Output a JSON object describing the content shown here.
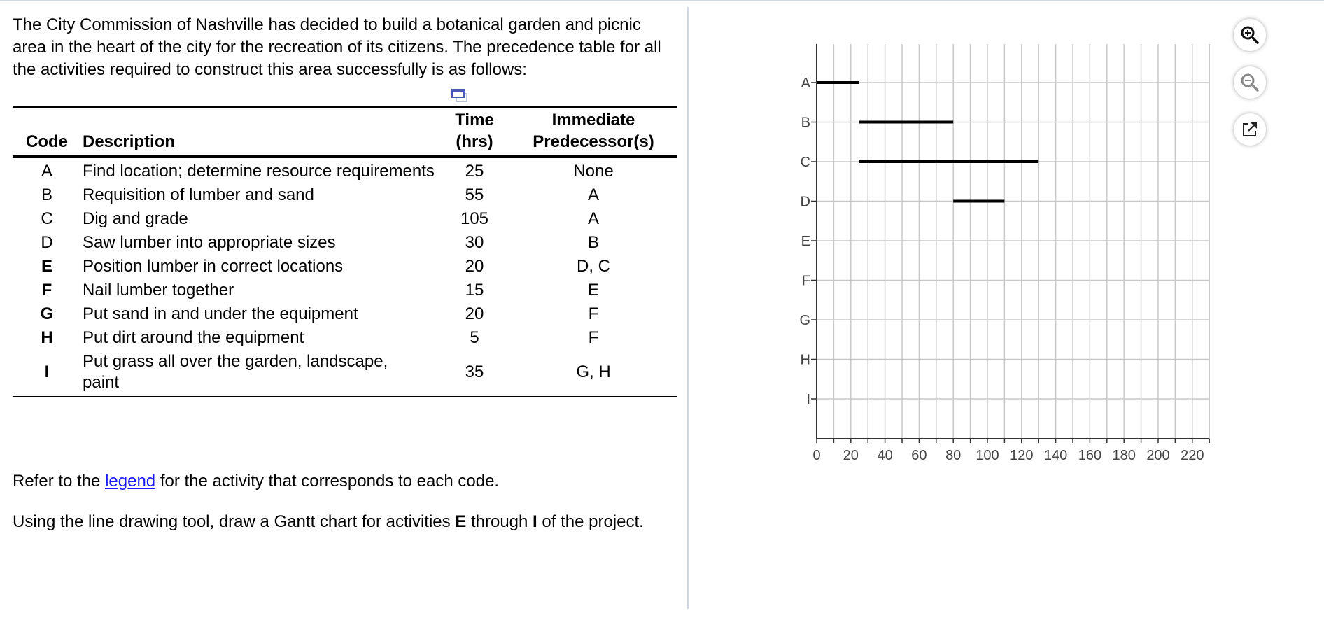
{
  "intro": {
    "text": "The City Commission of Nashville has decided to build a botanical garden and picnic area in the heart of the city for the recreation of its citizens. The precedence table for all the activities required to construct this area successfully is as follows:"
  },
  "copy_icon": "copy-table-icon",
  "table": {
    "headers": {
      "code": "Code",
      "description": "Description",
      "time_line1": "Time",
      "time_line2": "(hrs)",
      "pred_line1": "Immediate",
      "pred_line2": "Predecessor(s)"
    },
    "rows": [
      {
        "code": "A",
        "description": "Find location; determine resource requirements",
        "time": "25",
        "predecessors": "None"
      },
      {
        "code": "B",
        "description": "Requisition of lumber and sand",
        "time": "55",
        "predecessors": "A"
      },
      {
        "code": "C",
        "description": "Dig and grade",
        "time": "105",
        "predecessors": "A"
      },
      {
        "code": "D",
        "description": "Saw lumber into appropriate sizes",
        "time": "30",
        "predecessors": "B"
      },
      {
        "code": "E",
        "description": "Position lumber in correct locations",
        "time": "20",
        "predecessors": "D, C"
      },
      {
        "code": "F",
        "description": "Nail lumber together",
        "time": "15",
        "predecessors": "E"
      },
      {
        "code": "G",
        "description": "Put sand in and under the equipment",
        "time": "20",
        "predecessors": "F"
      },
      {
        "code": "H",
        "description": "Put dirt around the equipment",
        "time": "5",
        "predecessors": "F"
      },
      {
        "code": "I",
        "description": "Put grass all over the garden, landscape, paint",
        "time": "35",
        "predecessors": "G, H"
      }
    ]
  },
  "refer": {
    "before": "Refer to the ",
    "link": "legend",
    "after": " for the activity that corresponds to each code."
  },
  "instruction": {
    "part1": "Using the line drawing tool, draw a Gantt chart for activities ",
    "bold1": "E",
    "part2": " through ",
    "bold2": "I",
    "part3": " of the project."
  },
  "toolbar": {
    "zoom_in": "zoom-in-icon",
    "zoom_out": "zoom-out-icon",
    "popout": "popout-icon"
  },
  "chart_data": {
    "type": "gantt",
    "title": "",
    "xlabel": "",
    "ylabel": "",
    "xlim": [
      0,
      230
    ],
    "x_ticks": [
      0,
      20,
      40,
      60,
      80,
      100,
      120,
      140,
      160,
      180,
      200,
      220
    ],
    "minor_tick_step": 10,
    "grid": true,
    "categories": [
      "A",
      "B",
      "C",
      "D",
      "E",
      "F",
      "G",
      "H",
      "I"
    ],
    "bars": [
      {
        "activity": "A",
        "start": 0,
        "end": 25
      },
      {
        "activity": "B",
        "start": 25,
        "end": 80
      },
      {
        "activity": "C",
        "start": 25,
        "end": 130
      },
      {
        "activity": "D",
        "start": 80,
        "end": 110
      }
    ],
    "colors": {
      "bar": "#000000",
      "grid": "#c8c8c8",
      "axis": "#333333",
      "label": "#444444"
    }
  }
}
